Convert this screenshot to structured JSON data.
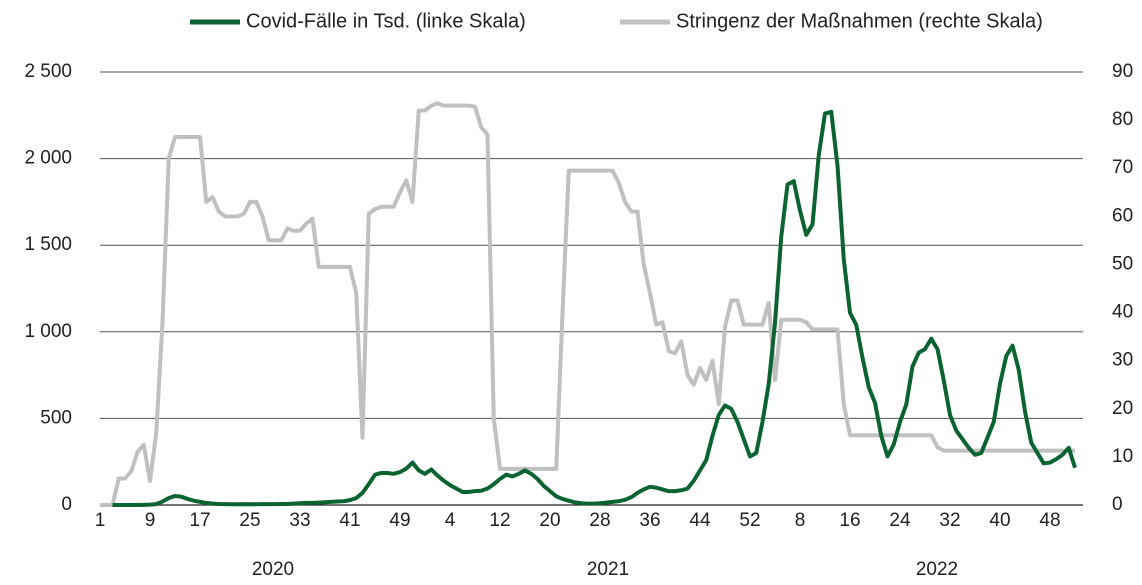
{
  "chart_data": {
    "type": "line",
    "categories": [
      "1",
      null,
      null,
      null,
      null,
      null,
      null,
      null,
      "9",
      null,
      null,
      null,
      null,
      null,
      null,
      null,
      "17",
      null,
      null,
      null,
      null,
      null,
      null,
      null,
      "25",
      null,
      null,
      null,
      null,
      null,
      null,
      null,
      "33",
      null,
      null,
      null,
      null,
      null,
      null,
      null,
      "41",
      null,
      null,
      null,
      null,
      null,
      null,
      null,
      "49",
      null,
      null,
      null,
      null,
      null,
      null,
      null,
      "4",
      null,
      null,
      null,
      null,
      null,
      null,
      null,
      "12",
      null,
      null,
      null,
      null,
      null,
      null,
      null,
      "20",
      null,
      null,
      null,
      null,
      null,
      null,
      null,
      "28",
      null,
      null,
      null,
      null,
      null,
      null,
      null,
      "36",
      null,
      null,
      null,
      null,
      null,
      null,
      null,
      "44",
      null,
      null,
      null,
      null,
      null,
      null,
      null,
      "52",
      null,
      null,
      null,
      null,
      null,
      null,
      null,
      "8",
      null,
      null,
      null,
      null,
      null,
      null,
      null,
      "16",
      null,
      null,
      null,
      null,
      null,
      null,
      null,
      "24",
      null,
      null,
      null,
      null,
      null,
      null,
      null,
      "32",
      null,
      null,
      null,
      null,
      null,
      null,
      null,
      "40",
      null,
      null,
      null,
      null,
      null,
      null,
      null,
      "48",
      null,
      null,
      null,
      null
    ],
    "year_labels": [
      "2020",
      "2021",
      "2022"
    ],
    "series": [
      {
        "name": "Covid-Fälle in Tsd. (linke Skala)",
        "color": "#0b6331",
        "axis": "y",
        "values": [
          null,
          null,
          0,
          0,
          0,
          0,
          0,
          1,
          2,
          5,
          20,
          40,
          52,
          48,
          35,
          25,
          18,
          12,
          8,
          6,
          5,
          4,
          4,
          5,
          4,
          4,
          5,
          5,
          5,
          6,
          6,
          8,
          10,
          12,
          12,
          14,
          16,
          18,
          20,
          22,
          28,
          40,
          70,
          120,
          175,
          185,
          185,
          180,
          190,
          210,
          245,
          200,
          180,
          205,
          170,
          140,
          115,
          95,
          75,
          75,
          80,
          82,
          95,
          120,
          150,
          175,
          165,
          180,
          200,
          180,
          150,
          110,
          80,
          50,
          35,
          25,
          15,
          10,
          8,
          8,
          10,
          14,
          18,
          22,
          30,
          45,
          70,
          90,
          105,
          100,
          90,
          80,
          80,
          85,
          95,
          140,
          200,
          260,
          400,
          520,
          575,
          555,
          480,
          380,
          280,
          300,
          480,
          700,
          1050,
          1550,
          1850,
          1870,
          1700,
          1560,
          1620,
          2020,
          2260,
          2270,
          1960,
          1420,
          1110,
          1040,
          850,
          680,
          590,
          400,
          280,
          350,
          480,
          580,
          800,
          880,
          900,
          960,
          900,
          720,
          520,
          430,
          380,
          330,
          290,
          300,
          390,
          480,
          700,
          860,
          920,
          780,
          540,
          360,
          300,
          240,
          245,
          265,
          290,
          330,
          215
        ]
      },
      {
        "name": "Stringenz der Maßnahmen (rechte Skala)",
        "color": "#c0c0c0",
        "axis": "y2",
        "values": [
          0,
          0,
          0,
          5.5,
          5.5,
          7,
          11,
          12.5,
          5,
          15,
          38,
          72,
          76.5,
          76.5,
          76.5,
          76.5,
          76.5,
          63,
          64,
          61,
          60,
          60,
          60,
          60.5,
          63,
          63,
          60,
          55,
          55,
          55,
          57.5,
          57,
          57,
          58.5,
          59.5,
          49.5,
          49.5,
          49.5,
          49.5,
          49.5,
          49.5,
          44,
          14,
          60.5,
          61.5,
          62,
          62,
          62,
          65,
          67.5,
          63,
          82,
          82,
          83,
          83.5,
          83,
          83,
          83,
          83,
          83,
          82.8,
          78.5,
          77,
          18,
          7.5,
          7.5,
          7.5,
          7.5,
          7.5,
          7.5,
          7.5,
          7.5,
          7.5,
          7.5,
          40,
          69.5,
          69.5,
          69.5,
          69.5,
          69.5,
          69.5,
          69.5,
          69.5,
          67,
          63,
          61,
          61,
          50,
          44,
          37.5,
          38,
          32,
          31.5,
          34,
          27,
          25,
          28.5,
          26,
          30,
          21,
          37,
          42.5,
          42.5,
          37.5,
          37.5,
          37.5,
          37.5,
          42,
          26,
          38.5,
          38.5,
          38.5,
          38.5,
          38,
          36.5,
          36.5,
          36.5,
          36.5,
          36.5,
          21,
          14.5,
          14.5,
          14.5,
          14.5,
          14.5,
          14.5,
          14.5,
          14.5,
          14.5,
          14.5,
          14.5,
          14.5,
          14.5,
          14.5,
          12,
          11.3,
          11.3,
          11.3,
          11.3,
          11.3,
          11.3,
          11.3,
          11.3,
          11.3,
          11.3,
          11.3,
          11.3,
          11.3,
          11.3,
          11.3,
          11.3,
          11.3,
          11.3,
          11.3,
          11.3,
          11.3,
          11.3
        ]
      }
    ],
    "ylim": [
      0,
      2500
    ],
    "yticks": [
      0,
      500,
      {
        "value": 1000,
        "label": "1 000"
      },
      {
        "value": 1500,
        "label": "1 500"
      },
      {
        "value": 2000,
        "label": "2 000"
      },
      {
        "value": 2500,
        "label": "2 500"
      }
    ],
    "y2lim": [
      0,
      90
    ],
    "y2ticks": [
      0,
      10,
      20,
      30,
      40,
      50,
      60,
      70,
      80,
      90
    ],
    "grid": true,
    "legend": "top"
  }
}
